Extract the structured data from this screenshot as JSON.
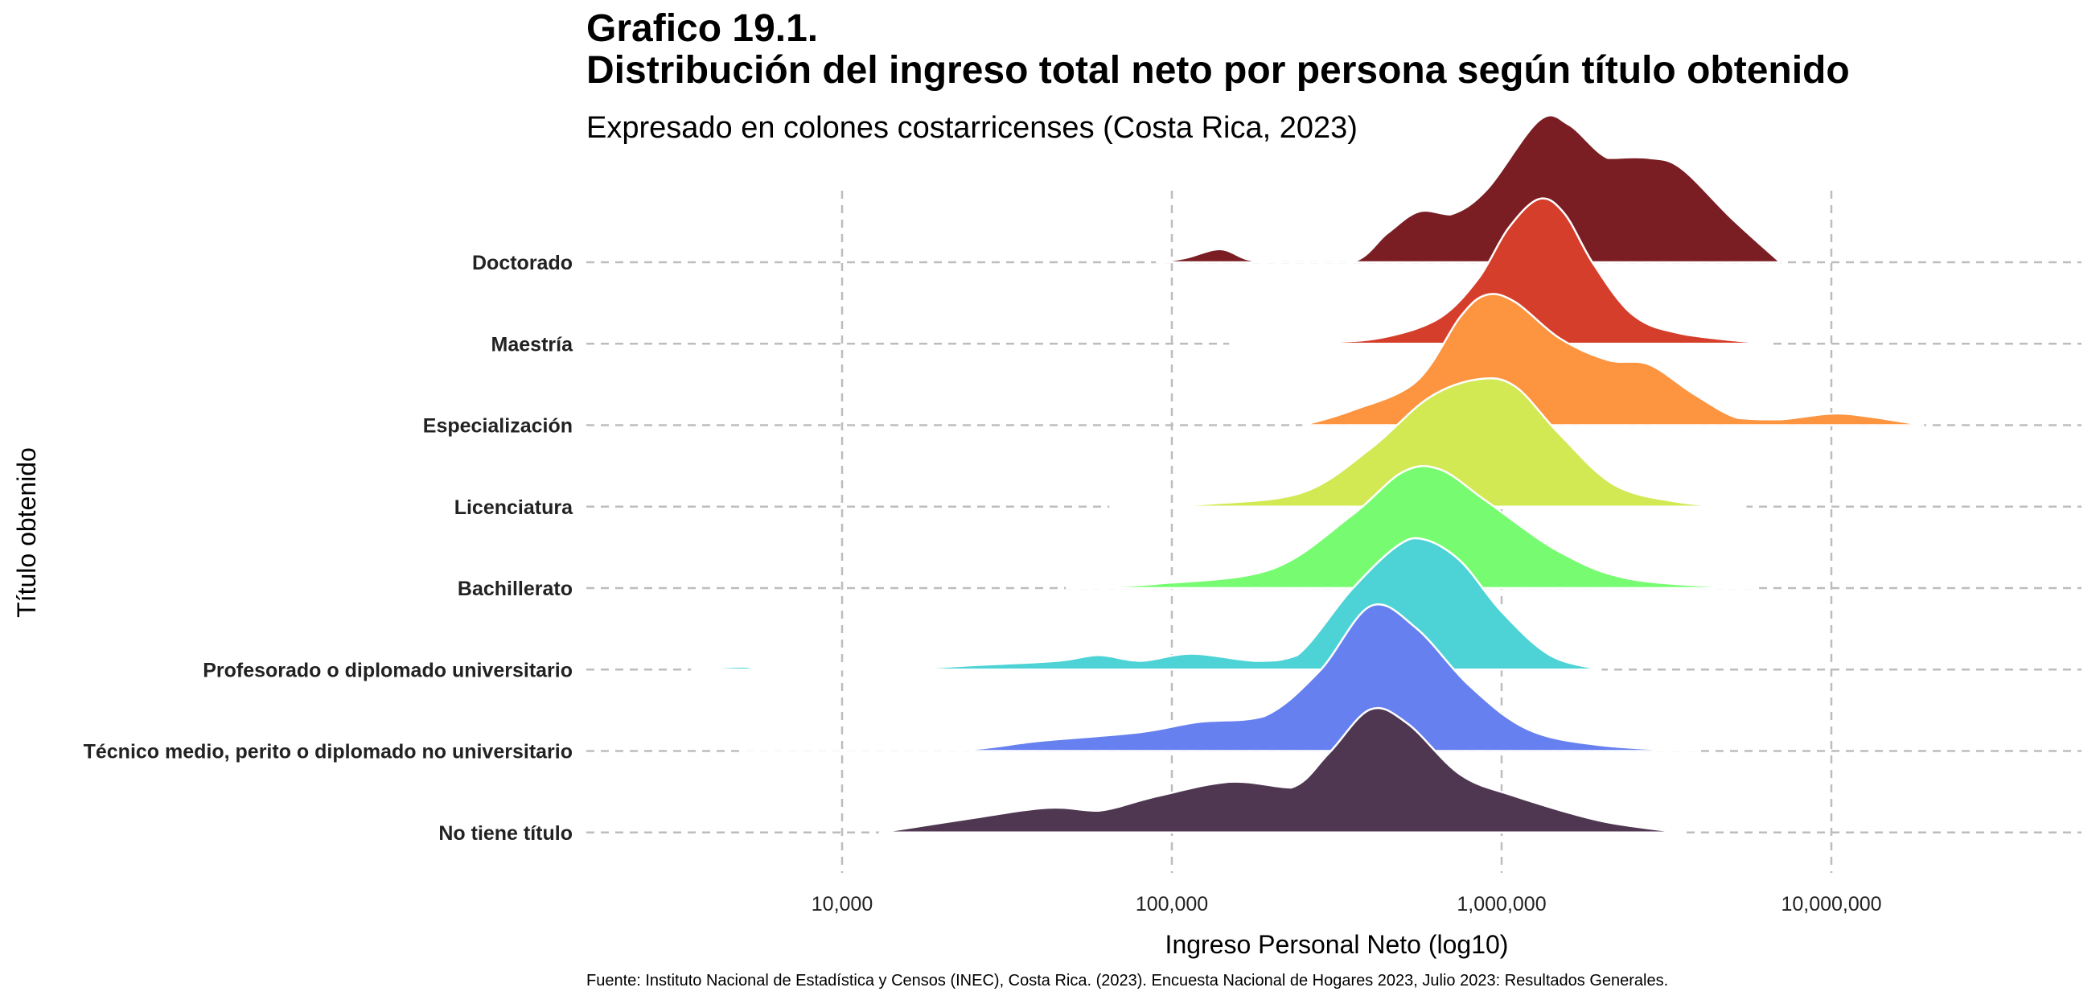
{
  "header": {
    "title_line1": "Grafico 19.1.",
    "title_line2": "Distribución del ingreso total neto por persona según título obtenido",
    "subtitle": "Expresado en colones costarricenses (Costa Rica, 2023)"
  },
  "caption": "Fuente: Instituto Nacional de Estadística y Censos (INEC), Costa Rica. (2023). Encuesta Nacional de Hogares 2023, Julio 2023: Resultados Generales.",
  "chart_data": {
    "type": "ridgeline",
    "title": "Distribución del ingreso total neto por persona según título obtenido",
    "subtitle": "Expresado en colones costarricenses (Costa Rica, 2023)",
    "xlabel": "Ingreso Personal Neto (log10)",
    "ylabel": "Título obtenido",
    "x_scale": "log10",
    "xlim": [
      1500,
      60000000
    ],
    "x_ticks": [
      10000,
      100000,
      1000000,
      10000000
    ],
    "x_tick_labels": [
      "10,000",
      "100,000",
      "1,000,000",
      "10,000,000"
    ],
    "grid": true,
    "legend": "none",
    "series": [
      {
        "name": "Doctorado",
        "color": "#7A1E24",
        "density": [
          [
            90000,
            0
          ],
          [
            110000,
            0.03
          ],
          [
            140000,
            0.09
          ],
          [
            170000,
            0.02
          ],
          [
            210000,
            0
          ],
          [
            350000,
            0
          ],
          [
            450000,
            0.2
          ],
          [
            560000,
            0.35
          ],
          [
            700000,
            0.33
          ],
          [
            900000,
            0.5
          ],
          [
            1300000,
            0.98
          ],
          [
            1600000,
            0.95
          ],
          [
            2100000,
            0.72
          ],
          [
            2800000,
            0.72
          ],
          [
            3500000,
            0.65
          ],
          [
            5000000,
            0.3
          ],
          [
            7000000,
            0
          ]
        ]
      },
      {
        "name": "Maestría",
        "color": "#D53E2A",
        "density": [
          [
            150000,
            0
          ],
          [
            300000,
            0.01
          ],
          [
            450000,
            0.05
          ],
          [
            650000,
            0.18
          ],
          [
            850000,
            0.45
          ],
          [
            1050000,
            0.8
          ],
          [
            1300000,
            1
          ],
          [
            1550000,
            0.9
          ],
          [
            1900000,
            0.55
          ],
          [
            2500000,
            0.2
          ],
          [
            3500000,
            0.07
          ],
          [
            6500000,
            0
          ]
        ]
      },
      {
        "name": "Especialización",
        "color": "#FC9440",
        "density": [
          [
            250000,
            0
          ],
          [
            350000,
            0.1
          ],
          [
            550000,
            0.3
          ],
          [
            750000,
            0.75
          ],
          [
            900000,
            0.9
          ],
          [
            1100000,
            0.85
          ],
          [
            1500000,
            0.6
          ],
          [
            2100000,
            0.45
          ],
          [
            2800000,
            0.42
          ],
          [
            3800000,
            0.22
          ],
          [
            5200000,
            0.05
          ],
          [
            7000000,
            0.04
          ],
          [
            10000000,
            0.08
          ],
          [
            13000000,
            0.06
          ],
          [
            19000000,
            0
          ]
        ]
      },
      {
        "name": "Licenciatura",
        "color": "#D2E953",
        "density": [
          [
            65000,
            0
          ],
          [
            130000,
            0.02
          ],
          [
            250000,
            0.1
          ],
          [
            400000,
            0.4
          ],
          [
            600000,
            0.75
          ],
          [
            850000,
            0.88
          ],
          [
            1100000,
            0.83
          ],
          [
            1500000,
            0.5
          ],
          [
            2200000,
            0.15
          ],
          [
            3500000,
            0.03
          ],
          [
            5500000,
            0
          ]
        ]
      },
      {
        "name": "Bachillerato",
        "color": "#77FC71",
        "density": [
          [
            48000,
            0
          ],
          [
            90000,
            0.03
          ],
          [
            200000,
            0.13
          ],
          [
            350000,
            0.5
          ],
          [
            500000,
            0.8
          ],
          [
            650000,
            0.82
          ],
          [
            900000,
            0.6
          ],
          [
            1500000,
            0.25
          ],
          [
            2500000,
            0.06
          ],
          [
            6000000,
            0
          ]
        ]
      },
      {
        "name": "Profesorado o diplomado universitario",
        "color": "#4DD3D6",
        "density": [
          [
            3500,
            0
          ],
          [
            5000,
            0.02
          ],
          [
            6000,
            0
          ],
          [
            14000,
            0
          ],
          [
            25000,
            0.03
          ],
          [
            45000,
            0.06
          ],
          [
            60000,
            0.1
          ],
          [
            80000,
            0.06
          ],
          [
            115000,
            0.11
          ],
          [
            180000,
            0.06
          ],
          [
            240000,
            0.1
          ],
          [
            350000,
            0.55
          ],
          [
            480000,
            0.85
          ],
          [
            580000,
            0.9
          ],
          [
            750000,
            0.75
          ],
          [
            1000000,
            0.4
          ],
          [
            1400000,
            0.1
          ],
          [
            2000000,
            0
          ]
        ]
      },
      {
        "name": "Técnico medio, perito o diplomado no universitario",
        "color": "#6780EF",
        "density": [
          [
            5000,
            0
          ],
          [
            20000,
            0
          ],
          [
            40000,
            0.07
          ],
          [
            80000,
            0.13
          ],
          [
            120000,
            0.2
          ],
          [
            190000,
            0.24
          ],
          [
            280000,
            0.55
          ],
          [
            400000,
            1
          ],
          [
            550000,
            0.85
          ],
          [
            800000,
            0.45
          ],
          [
            1200000,
            0.15
          ],
          [
            2000000,
            0.04
          ],
          [
            4000000,
            0
          ]
        ]
      },
      {
        "name": "No tiene título",
        "color": "#4F3752",
        "density": [
          [
            13000,
            0
          ],
          [
            25000,
            0.1
          ],
          [
            42000,
            0.17
          ],
          [
            60000,
            0.15
          ],
          [
            90000,
            0.25
          ],
          [
            150000,
            0.35
          ],
          [
            230000,
            0.31
          ],
          [
            300000,
            0.55
          ],
          [
            400000,
            0.85
          ],
          [
            520000,
            0.75
          ],
          [
            750000,
            0.4
          ],
          [
            1100000,
            0.25
          ],
          [
            2000000,
            0.08
          ],
          [
            3500000,
            0
          ]
        ]
      }
    ]
  }
}
